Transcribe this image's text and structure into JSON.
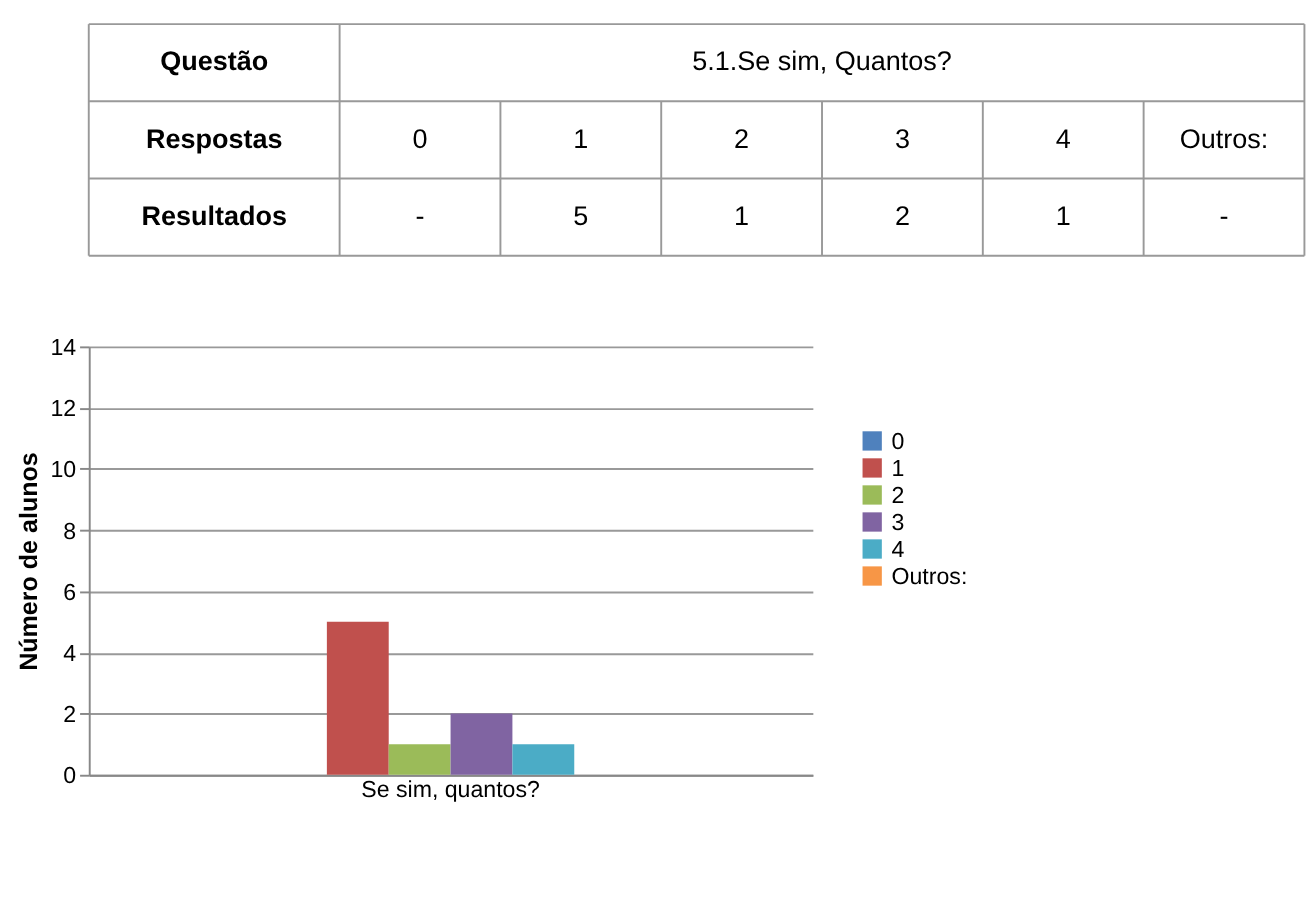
{
  "chart_data": {
    "type": "bar",
    "title": "5.1.Se sim, Quantos?",
    "ylabel": "Número de alunos",
    "annotations": [
      "Questão",
      "Respostas",
      "Resultados",
      "-",
      "5",
      "1",
      "2",
      "1",
      "-"
    ],
    "categories": [
      "Se sim, quantos?"
    ],
    "series": [
      {
        "name": "0",
        "color": "#4f81bd",
        "values": [
          null
        ]
      },
      {
        "name": "1",
        "color": "#c0504d",
        "values": [
          5
        ]
      },
      {
        "name": "2",
        "color": "#9bbb59",
        "values": [
          1
        ]
      },
      {
        "name": "3",
        "color": "#8064a2",
        "values": [
          2
        ]
      },
      {
        "name": "4",
        "color": "#4bacc6",
        "values": [
          1
        ]
      },
      {
        "name": "Outros:",
        "color": "#f79646",
        "values": [
          null
        ]
      }
    ],
    "ylim": [
      0,
      14
    ],
    "yticks": [
      0,
      2,
      4,
      6,
      8,
      10,
      12,
      14
    ],
    "grid": "y",
    "legend": "right"
  }
}
